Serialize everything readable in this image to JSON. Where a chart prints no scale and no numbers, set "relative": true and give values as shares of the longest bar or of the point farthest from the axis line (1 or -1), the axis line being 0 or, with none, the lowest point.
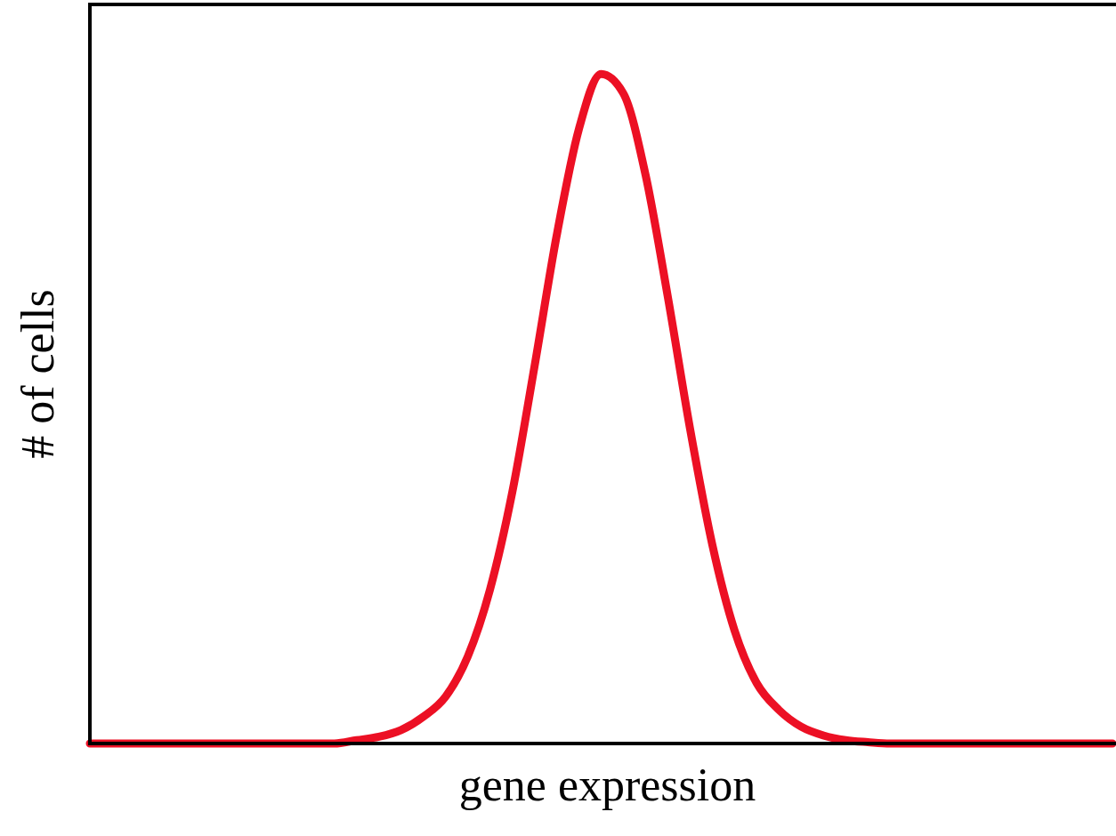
{
  "chart_data": {
    "type": "line",
    "relative": true,
    "xlabel": "gene expression",
    "ylabel": "# of cells",
    "color": "#ec1024",
    "categories": [
      null,
      null,
      null,
      null,
      null,
      null,
      null,
      null,
      null,
      null,
      null,
      null,
      null,
      null,
      null,
      null,
      null,
      null,
      null,
      null,
      null,
      null,
      null,
      null,
      null,
      null,
      null,
      null,
      null,
      null,
      null,
      null,
      null,
      null,
      null,
      null,
      null,
      null,
      null,
      null,
      null,
      null,
      null,
      null,
      null,
      null,
      null
    ],
    "values": [
      0,
      0,
      0,
      0,
      0,
      0,
      0,
      0,
      0,
      0,
      0,
      0,
      0.005,
      0.01,
      0.02,
      0.04,
      0.07,
      0.13,
      0.23,
      0.375,
      0.563,
      0.759,
      0.918,
      1,
      0.971,
      0.849,
      0.667,
      0.47,
      0.297,
      0.169,
      0.09,
      0.05,
      0.025,
      0.012,
      0.005,
      0.002,
      0,
      0,
      0,
      0,
      0,
      0,
      0,
      0,
      0,
      0,
      0
    ]
  }
}
